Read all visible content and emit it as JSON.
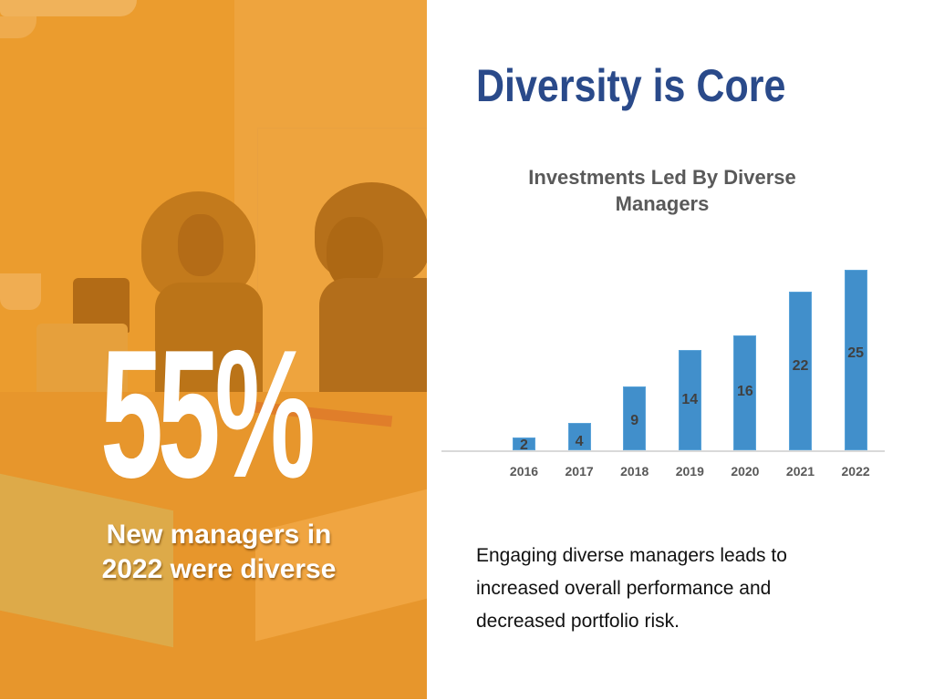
{
  "slide": {
    "title": "Diversity is Core",
    "stat": {
      "value": "55%",
      "caption_line1": "New managers in",
      "caption_line2": "2022 were diverse"
    },
    "body_text": {
      "line1": "Engaging diverse managers leads to",
      "line2": "increased overall performance and",
      "line3": "decreased portfolio risk."
    },
    "colors": {
      "title": "#2a4a8a",
      "bar": "#418fcb",
      "photo_tint": "#eea33a",
      "chart_title": "#595959"
    }
  },
  "chart_data": {
    "type": "bar",
    "title": "Investments Led By Diverse Managers",
    "title_line1": "Investments Led By Diverse",
    "title_line2": "Managers",
    "categories": [
      "2016",
      "2017",
      "2018",
      "2019",
      "2020",
      "2021",
      "2022"
    ],
    "values": [
      2,
      4,
      9,
      14,
      16,
      22,
      25
    ],
    "labels": [
      "2",
      "4",
      "9",
      "14",
      "16",
      "22",
      "25"
    ],
    "xlabel": "",
    "ylabel": "",
    "grid": false,
    "legend": null,
    "data_labels": "inside-end"
  }
}
